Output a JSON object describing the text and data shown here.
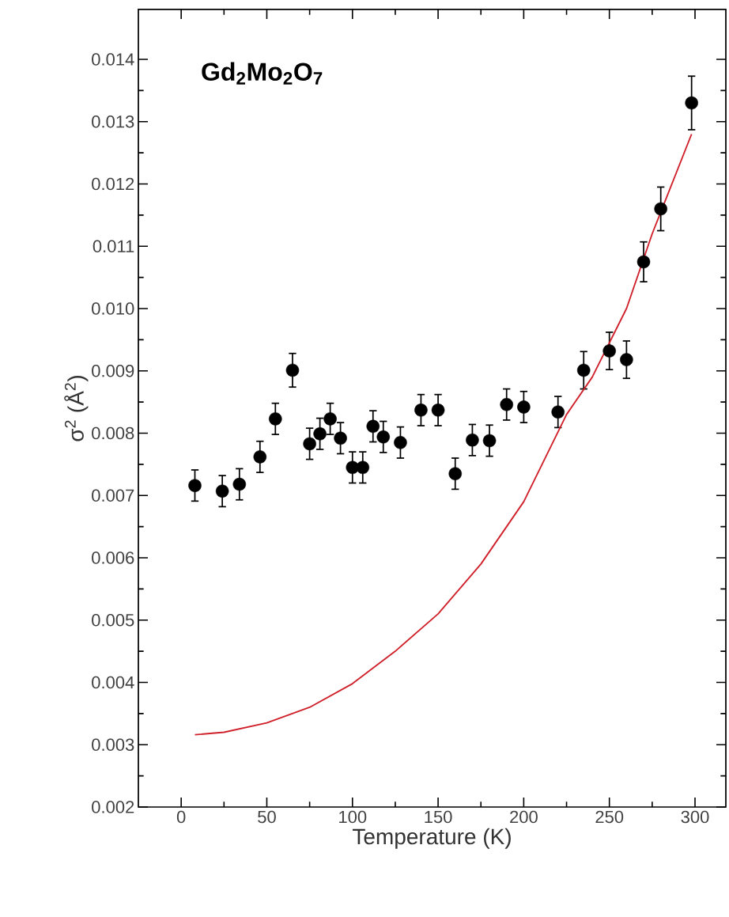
{
  "chart_data": {
    "type": "scatter",
    "xlabel": "Temperature (K)",
    "ylabel": "σ$^{2}$ (Å$^{2}$)",
    "annotations": [
      "Gd$_{2}$Mo$_{2}$O$_{7}$"
    ],
    "xlim": [
      -25,
      318
    ],
    "ylim": [
      0.002,
      0.0148
    ],
    "xticks": [
      0,
      50,
      100,
      150,
      200,
      250,
      300
    ],
    "yticks": [
      0.002,
      0.003,
      0.004,
      0.005,
      0.006,
      0.007,
      0.008,
      0.009,
      {
        "value": 0.01,
        "label": "0.010"
      },
      0.011,
      0.012,
      0.013,
      0.014
    ],
    "marker": "circle",
    "grid": false,
    "series": [
      {
        "color": "#000000",
        "x": [
          8,
          24,
          34,
          46,
          55,
          65,
          75,
          81,
          87,
          93,
          100,
          106,
          112,
          118,
          128,
          140,
          150,
          160,
          170,
          180,
          190,
          200,
          220,
          235,
          250,
          260,
          270,
          280,
          298
        ],
        "values": [
          0.00716,
          0.00707,
          0.00718,
          0.00762,
          0.00823,
          0.00901,
          0.00783,
          0.00799,
          0.00823,
          0.00792,
          0.00745,
          0.00745,
          0.00811,
          0.00794,
          0.00785,
          0.00837,
          0.00837,
          0.00735,
          0.00789,
          0.00788,
          0.00846,
          0.00842,
          0.00834,
          0.00901,
          0.00932,
          0.00918,
          0.01075,
          0.0116,
          0.0133
        ],
        "errors": [
          0.00025,
          0.00025,
          0.00025,
          0.00025,
          0.00025,
          0.00027,
          0.00025,
          0.00025,
          0.00025,
          0.00025,
          0.00025,
          0.00025,
          0.00025,
          0.00025,
          0.00025,
          0.00025,
          0.00025,
          0.00025,
          0.00025,
          0.00025,
          0.00025,
          0.00025,
          0.00025,
          0.0003,
          0.0003,
          0.0003,
          0.00032,
          0.00035,
          0.00043
        ]
      },
      {
        "type": "line",
        "color": "#d0202a",
        "marker": "none",
        "x": [
          8,
          25,
          50,
          75,
          100,
          125,
          150,
          175,
          200,
          225,
          240,
          260,
          275,
          298
        ],
        "values": [
          0.00316,
          0.0032,
          0.00335,
          0.0036,
          0.00398,
          0.0045,
          0.0051,
          0.0059,
          0.0069,
          0.0083,
          0.0089,
          0.01,
          0.0112,
          0.0128
        ]
      }
    ]
  }
}
